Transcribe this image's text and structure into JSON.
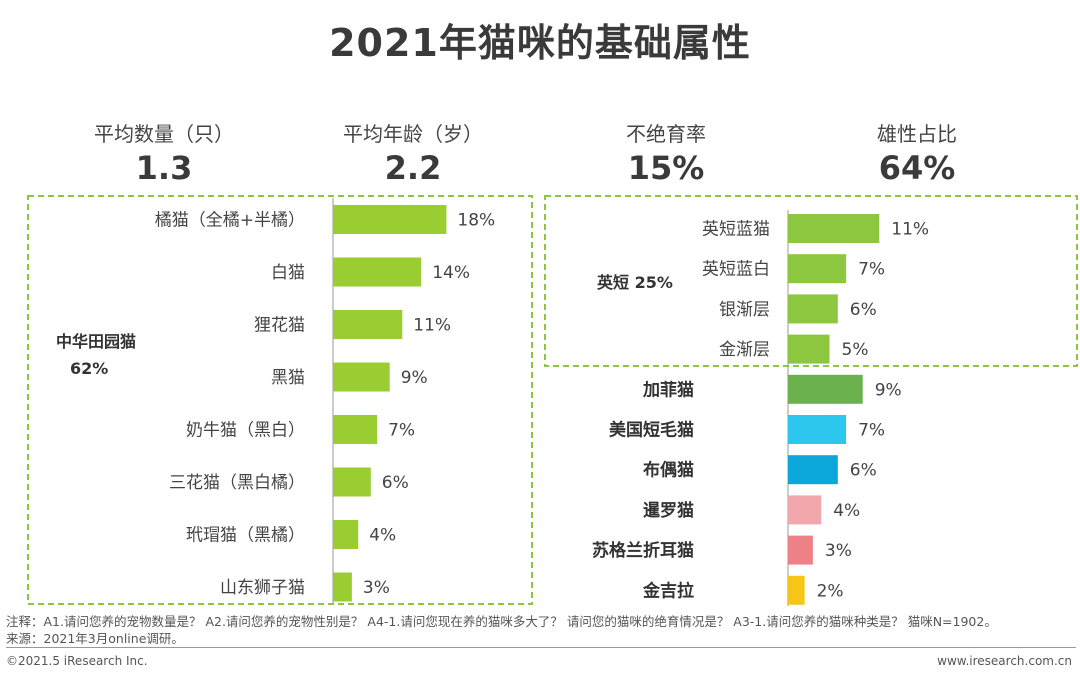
{
  "title": "2021年猫咪的基础属性",
  "stats": [
    {
      "label": "平均数量（只）",
      "value": "1.3"
    },
    {
      "label": "平均年龄（岁）",
      "value": "2.2"
    },
    {
      "label": "不绝育率",
      "value": "15%"
    },
    {
      "label": "雄性占比",
      "value": "64%"
    }
  ],
  "chart_data": [
    {
      "type": "bar",
      "orientation": "horizontal",
      "group_label": "中华田园猫",
      "group_value": "62%",
      "categories": [
        "橘猫（全橘+半橘）",
        "白猫",
        "狸花猫",
        "黑猫",
        "奶牛猫（黑白）",
        "三花猫（黑白橘）",
        "玳瑁猫（黑橘）",
        "山东狮子猫"
      ],
      "values": [
        18,
        14,
        11,
        9,
        7,
        6,
        4,
        3
      ],
      "value_labels": [
        "18%",
        "14%",
        "11%",
        "9%",
        "7%",
        "6%",
        "4%",
        "3%"
      ],
      "colors": [
        "#9ACD32"
      ]
    },
    {
      "type": "bar",
      "orientation": "horizontal",
      "group_label": "英短 25%",
      "categories": [
        "英短蓝猫",
        "英短蓝白",
        "银渐层",
        "金渐层",
        "加菲猫",
        "美国短毛猫",
        "布偶猫",
        "暹罗猫",
        "苏格兰折耳猫",
        "金吉拉"
      ],
      "values": [
        11,
        7,
        6,
        5,
        9,
        7,
        6,
        4,
        3,
        2
      ],
      "value_labels": [
        "11%",
        "7%",
        "6%",
        "5%",
        "9%",
        "7%",
        "6%",
        "4%",
        "3%",
        "2%"
      ],
      "colors": [
        "#8DC63F",
        "#8DC63F",
        "#8DC63F",
        "#8DC63F",
        "#6AB04C",
        "#2CC6EE",
        "#0BA7DB",
        "#F2A7AC",
        "#EF8288",
        "#F5C518"
      ]
    }
  ],
  "footnote_1": "注释：A1.请问您养的宠物数量是？ A2.请问您养的宠物性别是？ A4-1.请问您现在养的猫咪多大了？ 请问您的猫咪的绝育情况是？ A3-1.请问您养的猫咪种类是？ 猫咪N=1902。",
  "footnote_2": "来源：2021年3月online调研。",
  "copyright": "©2021.5 iResearch Inc.",
  "website": "www.iresearch.com.cn"
}
